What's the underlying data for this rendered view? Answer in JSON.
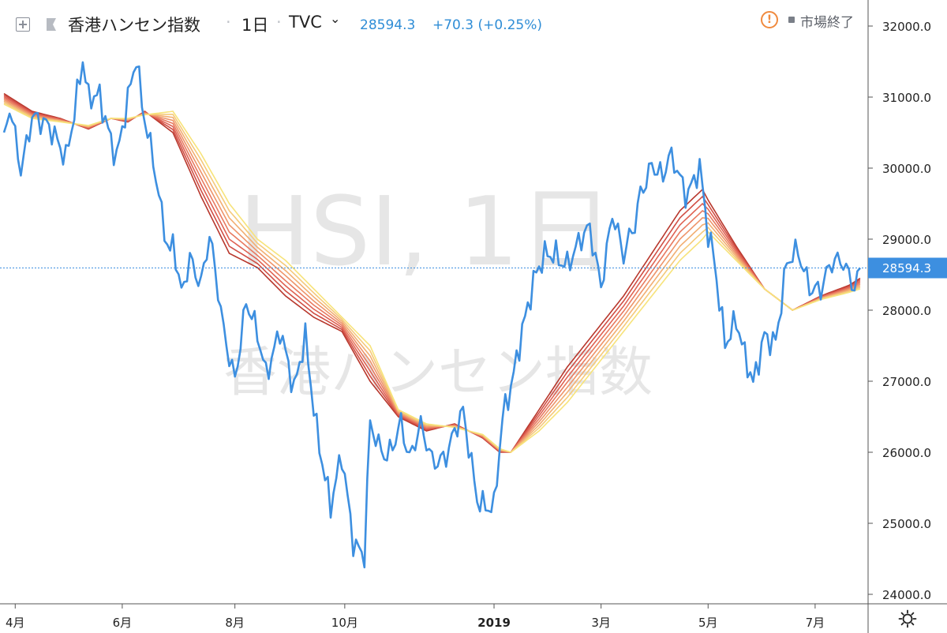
{
  "header": {
    "symbol": "香港ハンセン指数",
    "separator": "·",
    "interval": "1日",
    "source": "TVC",
    "chevron": "⌄",
    "price": "28594.3",
    "change": "+70.3 (+0.25%)"
  },
  "status": {
    "icon": "!",
    "text": "市場終了"
  },
  "watermark": {
    "line1": "HSI, 1日",
    "line2": "香港ハンセン指数"
  },
  "colors": {
    "price_line": "#3d8fe0",
    "last_price_bg": "#3d8fe0",
    "axis_text": "#222222",
    "ribbon": [
      "#f7e37a",
      "#f5c97a",
      "#f2ae72",
      "#ee946a",
      "#e87a60",
      "#df6253",
      "#d04e44",
      "#b8372c"
    ]
  },
  "chart_data": {
    "type": "line",
    "title": "",
    "y_axis": {
      "position": "right",
      "ylim": [
        24000,
        32000
      ],
      "ticks": [
        "32000.0",
        "31000.0",
        "30000.0",
        "29000.0",
        "28000.0",
        "27000.0",
        "26000.0",
        "25000.0",
        "24000.0"
      ],
      "tick_values": [
        32000,
        31000,
        30000,
        29000,
        28000,
        27000,
        26000,
        25000,
        24000
      ]
    },
    "x_axis": {
      "labels": [
        "4月",
        "6月",
        "8月",
        "10月",
        "2019",
        "3月",
        "5月",
        "7月"
      ],
      "label_index": [
        4,
        42,
        82,
        121,
        174,
        212,
        250,
        288
      ],
      "bold_labels": [
        "2019"
      ]
    },
    "last_price_label": "28594.3",
    "last_price_value": 28594.3,
    "x_count": 305,
    "series": [
      {
        "role": "price",
        "values_anchor_index": [
          0,
          2,
          6,
          10,
          16,
          22,
          28,
          30,
          34,
          40,
          44,
          47,
          49,
          53,
          57,
          59,
          60,
          63,
          66,
          70,
          73,
          78,
          82,
          86,
          90,
          93,
          98,
          103,
          107,
          111,
          116,
          120,
          124,
          128,
          130,
          133,
          136,
          141,
          144,
          148,
          152,
          157,
          163,
          168,
          174,
          177,
          180,
          184,
          188,
          192,
          196,
          200,
          204,
          208,
          212,
          216,
          220,
          224,
          226,
          230,
          234,
          236,
          239,
          242,
          244,
          247,
          250,
          252,
          256,
          260,
          263,
          266,
          270,
          274,
          278,
          282,
          286,
          290,
          294,
          298,
          302,
          304
        ],
        "values": [
          30300,
          30800,
          30000,
          30800,
          30500,
          30200,
          31500,
          30900,
          31000,
          30200,
          30900,
          31500,
          30900,
          30200,
          29100,
          28700,
          28900,
          28200,
          28800,
          28400,
          29000,
          27700,
          27100,
          28100,
          27600,
          27100,
          27800,
          26800,
          27600,
          26400,
          25200,
          25900,
          24800,
          24600,
          26400,
          26000,
          25900,
          26500,
          25900,
          26300,
          25900,
          26000,
          26500,
          25400,
          25200,
          26400,
          26900,
          27800,
          28400,
          28700,
          28800,
          28700,
          28900,
          29100,
          28400,
          29400,
          28700,
          29200,
          29700,
          30100,
          29800,
          30100,
          30000,
          29700,
          29800,
          30000,
          29000,
          28700,
          27600,
          27900,
          27300,
          26900,
          27700,
          27600,
          28600,
          28800,
          28400,
          28300,
          28600,
          28700,
          28400,
          28594.3
        ]
      },
      {
        "role": "ma_ribbon",
        "count": 8,
        "values_anchor_index": [
          0,
          10,
          20,
          30,
          38,
          44,
          50,
          60,
          70,
          80,
          90,
          100,
          110,
          120,
          130,
          140,
          150,
          160,
          170,
          176,
          180,
          190,
          200,
          210,
          220,
          230,
          240,
          248,
          250,
          260,
          270,
          280,
          290,
          300,
          304
        ],
        "values_outer": [
          31050,
          30800,
          30700,
          30550,
          30700,
          30650,
          30800,
          30500,
          29600,
          28800,
          28600,
          28200,
          27900,
          27700,
          27000,
          26500,
          26300,
          26400,
          26200,
          26000,
          26000,
          26600,
          27200,
          27700,
          28200,
          28800,
          29400,
          29700,
          29550,
          28900,
          28300,
          28000,
          28200,
          28350,
          28450
        ],
        "values_inner": [
          30900,
          30700,
          30650,
          30600,
          30700,
          30700,
          30750,
          30800,
          30200,
          29500,
          29000,
          28700,
          28300,
          27900,
          27500,
          26600,
          26400,
          26350,
          26250,
          26050,
          26000,
          26300,
          26700,
          27200,
          27700,
          28200,
          28700,
          29000,
          29100,
          28700,
          28300,
          28000,
          28150,
          28250,
          28300
        ]
      }
    ]
  }
}
